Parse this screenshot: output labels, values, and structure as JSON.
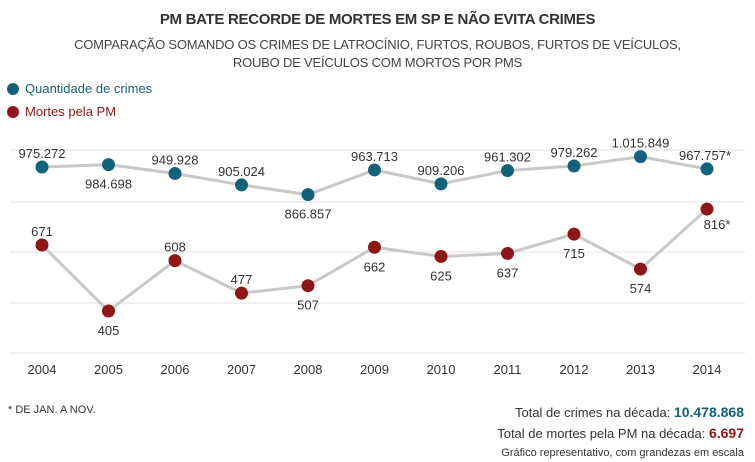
{
  "chart_data": {
    "type": "line",
    "title": "PM BATE RECORDE DE MORTES EM SP E NÃO EVITA CRIMES",
    "subtitle_line1": "COMPARAÇÃO SOMANDO OS CRIMES DE LATROCÍNIO, FURTOS, ROUBOS, FURTOS DE VEÍCULOS,",
    "subtitle_line2": "ROUBO DE VEÍCULOS COM MORTOS POR PMS",
    "categories": [
      "2004",
      "2005",
      "2006",
      "2007",
      "2008",
      "2009",
      "2010",
      "2011",
      "2012",
      "2013",
      "2014"
    ],
    "grid": true,
    "legend_placement": "top-left",
    "series": [
      {
        "name": "Quantidade de crimes",
        "color": "#13627b",
        "values": [
          975272,
          984698,
          949928,
          905024,
          866857,
          963713,
          909206,
          961302,
          979262,
          1015849,
          967757
        ],
        "labels": [
          "975.272",
          "984.698",
          "949.928",
          "905.024",
          "866.857",
          "963.713",
          "909.206",
          "961.302",
          "979.262",
          "1.015.849",
          "967.757*"
        ],
        "label_side": [
          "above",
          "below",
          "above",
          "above",
          "below",
          "above",
          "above",
          "above",
          "above",
          "above",
          "above"
        ]
      },
      {
        "name": "Mortes pela PM",
        "color": "#8e1616",
        "values": [
          671,
          405,
          608,
          477,
          507,
          662,
          625,
          637,
          715,
          574,
          816
        ],
        "labels": [
          "671",
          "405",
          "608",
          "477",
          "507",
          "662",
          "625",
          "637",
          "715",
          "574",
          "816*"
        ],
        "label_side": [
          "above",
          "below",
          "above",
          "above",
          "below",
          "below",
          "below",
          "below",
          "below",
          "below",
          "below"
        ]
      }
    ]
  },
  "footnote": "* DE JAN. A NOV.",
  "totals": {
    "crimes_label": "Total de crimes na década: ",
    "crimes_value": "10.478.868",
    "deaths_label": "Total de mortes pela PM na década: ",
    "deaths_value": "6.697",
    "note": "Gráfico representativo, com grandezas em escala"
  }
}
